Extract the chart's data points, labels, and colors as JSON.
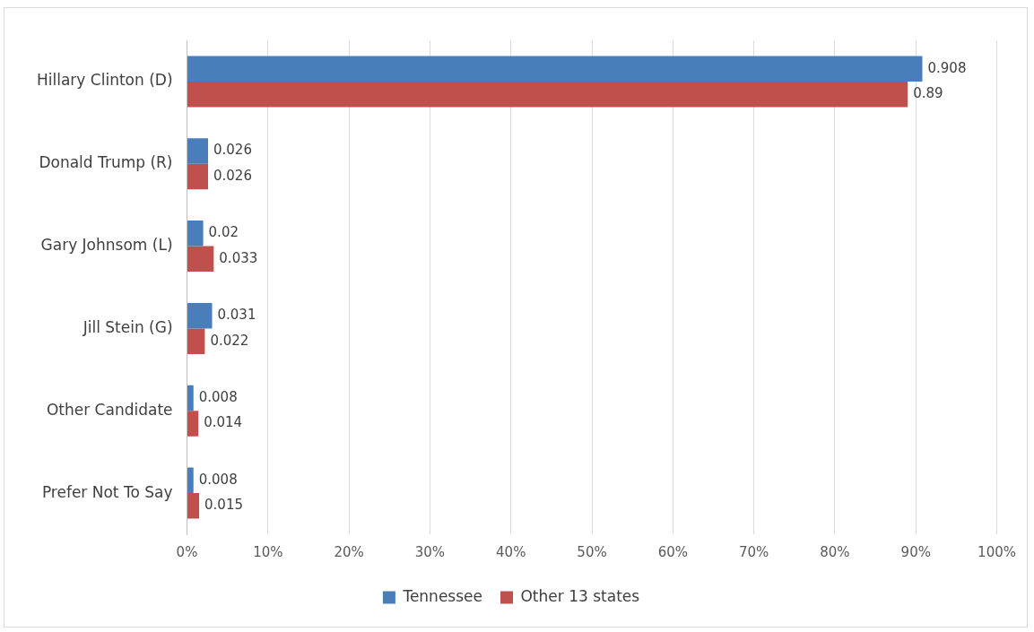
{
  "chart_data": {
    "type": "bar",
    "orientation": "horizontal",
    "categories": [
      "Hillary Clinton (D)",
      "Donald Trump (R)",
      "Gary Johnsom (L)",
      "Jill Stein (G)",
      "Other Candidate",
      "Prefer Not To Say"
    ],
    "series": [
      {
        "name": "Tennessee",
        "color": "#4a7ebb",
        "values": [
          0.908,
          0.026,
          0.02,
          0.031,
          0.008,
          0.008
        ]
      },
      {
        "name": "Other 13 states",
        "color": "#c0504d",
        "values": [
          0.89,
          0.026,
          0.033,
          0.022,
          0.014,
          0.015
        ]
      }
    ],
    "xlim": [
      0,
      1
    ],
    "xticks": [
      {
        "value": 0,
        "label": "0%"
      },
      {
        "value": 0.1,
        "label": "10%"
      },
      {
        "value": 0.2,
        "label": "20%"
      },
      {
        "value": 0.3,
        "label": "30%"
      },
      {
        "value": 0.4,
        "label": "40%"
      },
      {
        "value": 0.5,
        "label": "50%"
      },
      {
        "value": 0.6,
        "label": "60%"
      },
      {
        "value": 0.7,
        "label": "70%"
      },
      {
        "value": 0.8,
        "label": "80%"
      },
      {
        "value": 0.9,
        "label": "90%"
      },
      {
        "value": 1,
        "label": "100%"
      }
    ],
    "grid": "x",
    "legend": "bottom",
    "data_labels": true
  }
}
